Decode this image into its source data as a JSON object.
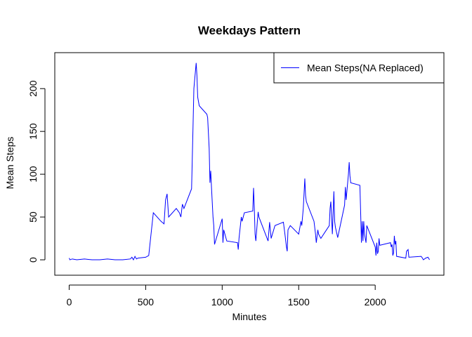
{
  "chart_data": {
    "type": "line",
    "title": "Weekdays Pattern",
    "x_label": "Minutes",
    "y_label": "Mean Steps",
    "x": [
      0,
      5,
      20,
      50,
      100,
      150,
      200,
      250,
      300,
      350,
      400,
      410,
      420,
      430,
      440,
      450,
      500,
      520,
      550,
      600,
      620,
      630,
      640,
      650,
      700,
      720,
      730,
      740,
      750,
      800,
      810,
      815,
      830,
      835,
      840,
      850,
      900,
      905,
      915,
      920,
      925,
      930,
      940,
      945,
      950,
      1000,
      1005,
      1010,
      1030,
      1100,
      1105,
      1110,
      1125,
      1130,
      1145,
      1200,
      1205,
      1210,
      1215,
      1220,
      1230,
      1235,
      1240,
      1300,
      1310,
      1320,
      1345,
      1400,
      1410,
      1420,
      1425,
      1430,
      1445,
      1500,
      1515,
      1520,
      1530,
      1540,
      1545,
      1550,
      1600,
      1610,
      1615,
      1625,
      1630,
      1645,
      1700,
      1705,
      1710,
      1715,
      1720,
      1730,
      1735,
      1740,
      1755,
      1800,
      1805,
      1810,
      1820,
      1825,
      1830,
      1835,
      1840,
      1900,
      1905,
      1910,
      1915,
      1920,
      1925,
      1930,
      1935,
      1940,
      1945,
      2000,
      2005,
      2010,
      2015,
      2020,
      2025,
      2030,
      2100,
      2105,
      2110,
      2115,
      2120,
      2125,
      2130,
      2135,
      2140,
      2200,
      2205,
      2215,
      2220,
      2300,
      2305,
      2315,
      2330,
      2345,
      2355
    ],
    "series": [
      {
        "name": "Mean Steps(NA Replaced)",
        "color": "#0000ff",
        "values": [
          2,
          0,
          1,
          0,
          1,
          0,
          0,
          1,
          0,
          0,
          1,
          3,
          0,
          4,
          1,
          2,
          3,
          5,
          55,
          45,
          42,
          70,
          77,
          50,
          60,
          55,
          50,
          65,
          60,
          83,
          160,
          200,
          230,
          215,
          190,
          180,
          170,
          166,
          130,
          90,
          104,
          85,
          50,
          40,
          18,
          48,
          20,
          35,
          22,
          20,
          12,
          25,
          50,
          45,
          55,
          57,
          84,
          60,
          30,
          22,
          45,
          56,
          50,
          22,
          44,
          25,
          40,
          44,
          30,
          15,
          10,
          35,
          40,
          30,
          45,
          40,
          60,
          95,
          75,
          68,
          45,
          30,
          20,
          35,
          30,
          25,
          40,
          60,
          68,
          50,
          30,
          80,
          45,
          38,
          26,
          64,
          85,
          70,
          90,
          100,
          114,
          98,
          90,
          87,
          55,
          20,
          45,
          22,
          45,
          30,
          25,
          20,
          40,
          15,
          5,
          20,
          7,
          10,
          25,
          17,
          20,
          15,
          18,
          5,
          8,
          28,
          18,
          22,
          4,
          2,
          10,
          12,
          3,
          4,
          3,
          0,
          2,
          3,
          0
        ]
      }
    ],
    "xlim": [
      -94,
      2449
    ],
    "ylim": [
      -18,
      242
    ],
    "xticks": [
      0,
      500,
      1000,
      1500,
      2000
    ],
    "yticks": [
      0,
      50,
      100,
      150,
      200
    ],
    "legend_position": "top-right"
  }
}
